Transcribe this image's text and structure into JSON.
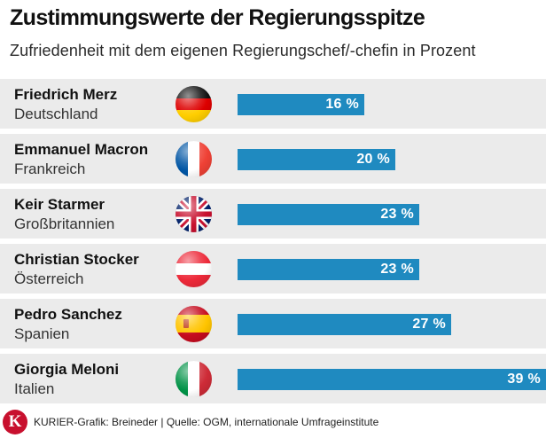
{
  "header": {
    "title": "Zustimmungswerte der Regierungsspitze",
    "subtitle": "Zufriedenheit mit dem eigenen Regierungschef/-chefin in Prozent"
  },
  "footer": {
    "logo_letter": "K",
    "source": "KURIER-Grafik: Breineder | Quelle: OGM, internationale Umfrageinstitute"
  },
  "chart_data": {
    "type": "bar",
    "orientation": "horizontal",
    "unit": "%",
    "bar_color": "#1f8ac0",
    "row_background": "#ebebeb",
    "xlim": [
      0,
      39
    ],
    "rows": [
      {
        "name": "Friedrich Merz",
        "country": "Deutschland",
        "flag": "germany-flag-icon",
        "value": 16,
        "label": "16 %"
      },
      {
        "name": "Emmanuel Macron",
        "country": "Frankreich",
        "flag": "france-flag-icon",
        "value": 20,
        "label": "20 %"
      },
      {
        "name": "Keir Starmer",
        "country": "Großbritannien",
        "flag": "uk-flag-icon",
        "value": 23,
        "label": "23 %"
      },
      {
        "name": "Christian Stocker",
        "country": "Österreich",
        "flag": "austria-flag-icon",
        "value": 23,
        "label": "23 %"
      },
      {
        "name": "Pedro Sanchez",
        "country": "Spanien",
        "flag": "spain-flag-icon",
        "value": 27,
        "label": "27 %"
      },
      {
        "name": "Giorgia Meloni",
        "country": "Italien",
        "flag": "italy-flag-icon",
        "value": 39,
        "label": "39 %"
      }
    ]
  }
}
